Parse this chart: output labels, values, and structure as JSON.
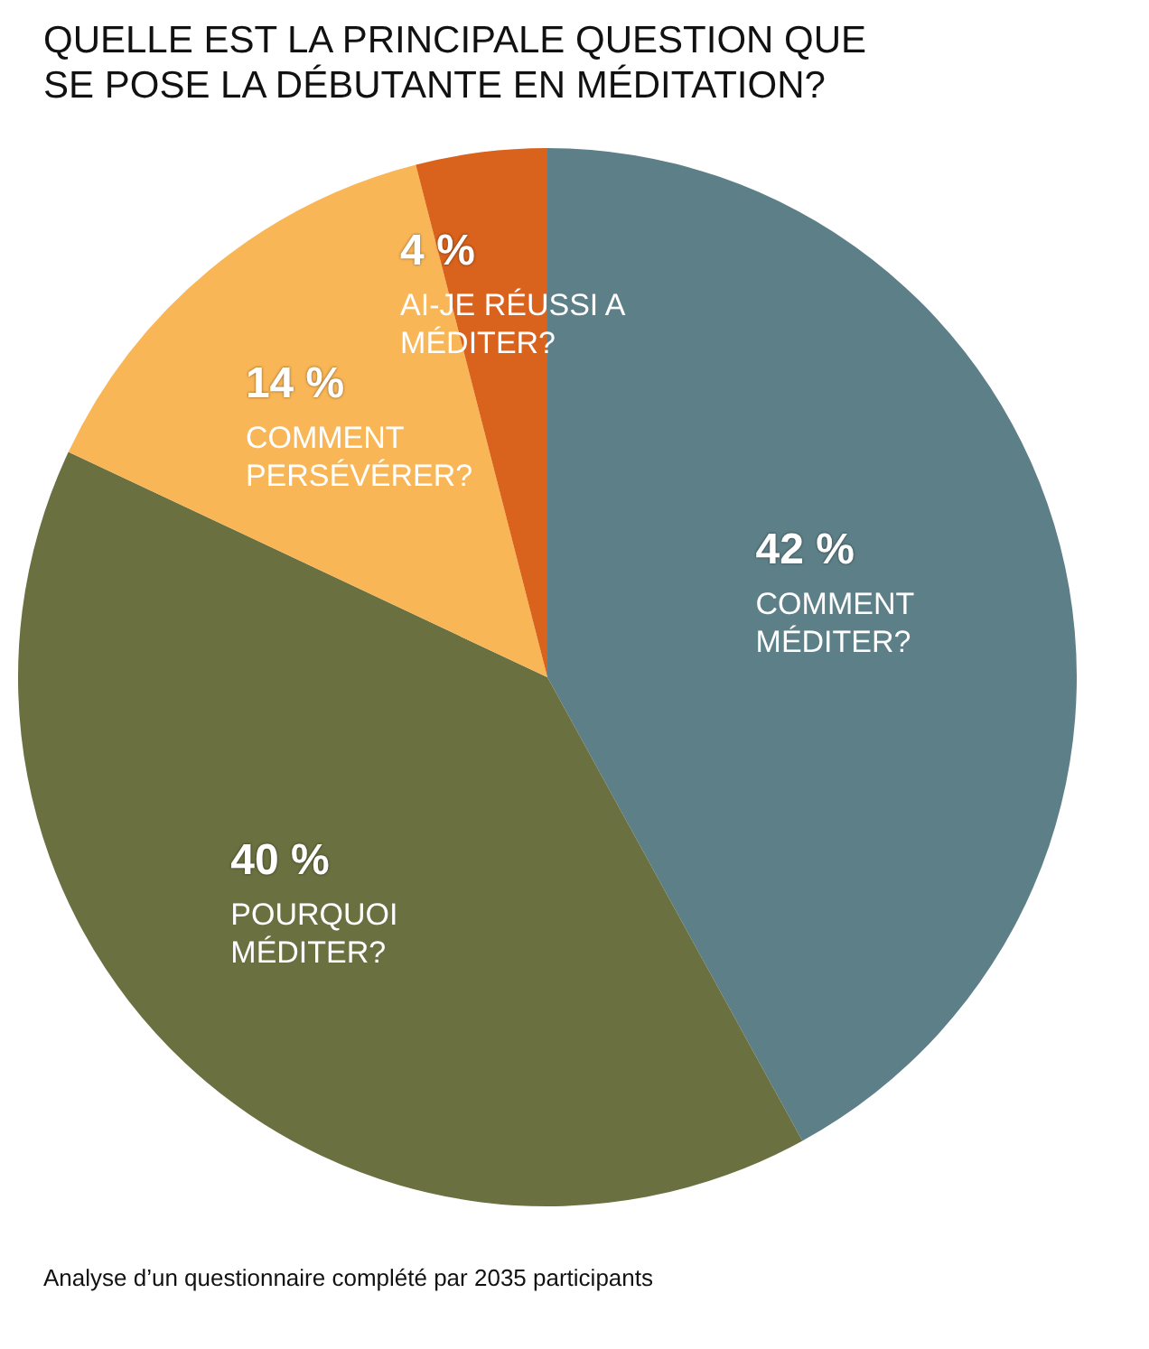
{
  "chart_data": {
    "type": "pie",
    "title": "QUELLE EST LA PRINCIPALE QUESTION QUE SE POSE LA DÉBUTANTE EN MÉDITATION?",
    "categories": [
      "COMMENT MÉDITER?",
      "POURQUOI MÉDITER?",
      "COMMENT PERSÉVÉRER?",
      "AI-JE RÉUSSI A MÉDITER?"
    ],
    "values": [
      42,
      40,
      14,
      4
    ],
    "colors": [
      "#5d7f87",
      "#6b7040",
      "#f9b656",
      "#d9621c"
    ],
    "value_labels": [
      "42 %",
      "40 %",
      "14 %",
      "4 %"
    ],
    "legend": false,
    "annotations": [
      "Analyse d’un questionnaire complété par 2035 participants"
    ]
  }
}
